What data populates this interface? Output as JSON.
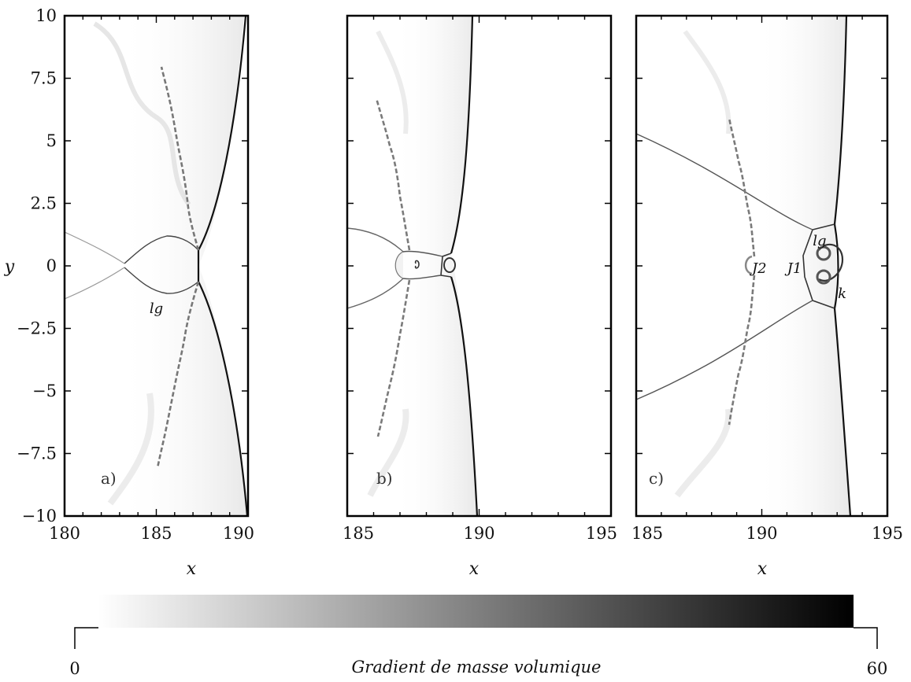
{
  "figure": {
    "y_axis": {
      "label": "y",
      "range": [
        -10,
        10
      ],
      "ticks": [
        "10",
        "7.5",
        "5",
        "2.5",
        "0",
        "−2.5",
        "−5",
        "−7.5",
        "−10"
      ]
    },
    "x_label": "x",
    "panels": [
      {
        "label": "a)",
        "x_range": [
          180,
          190
        ],
        "x_ticks": [
          "180",
          "185",
          "190"
        ],
        "annotations": [
          {
            "text": "lg",
            "x": 185.0,
            "y": -1.7
          }
        ]
      },
      {
        "label": "b)",
        "x_range": [
          185,
          195
        ],
        "x_ticks": [
          "185",
          "190",
          "195"
        ],
        "annotations": []
      },
      {
        "label": "c)",
        "x_range": [
          185,
          195
        ],
        "x_ticks": [
          "185",
          "190",
          "195"
        ],
        "annotations": [
          {
            "text": "lg",
            "x": 192.3,
            "y": 1.0
          },
          {
            "text": "J2",
            "x": 189.9,
            "y": -0.1
          },
          {
            "text": "J1",
            "x": 191.3,
            "y": -0.1
          },
          {
            "text": "k",
            "x": 193.2,
            "y": -1.1
          }
        ]
      }
    ],
    "colorbar": {
      "title": "Gradient de masse volumique",
      "min_label": "0",
      "max_label": "60",
      "range": [
        0,
        60
      ],
      "colors": [
        "#ffffff",
        "#000000"
      ]
    }
  }
}
